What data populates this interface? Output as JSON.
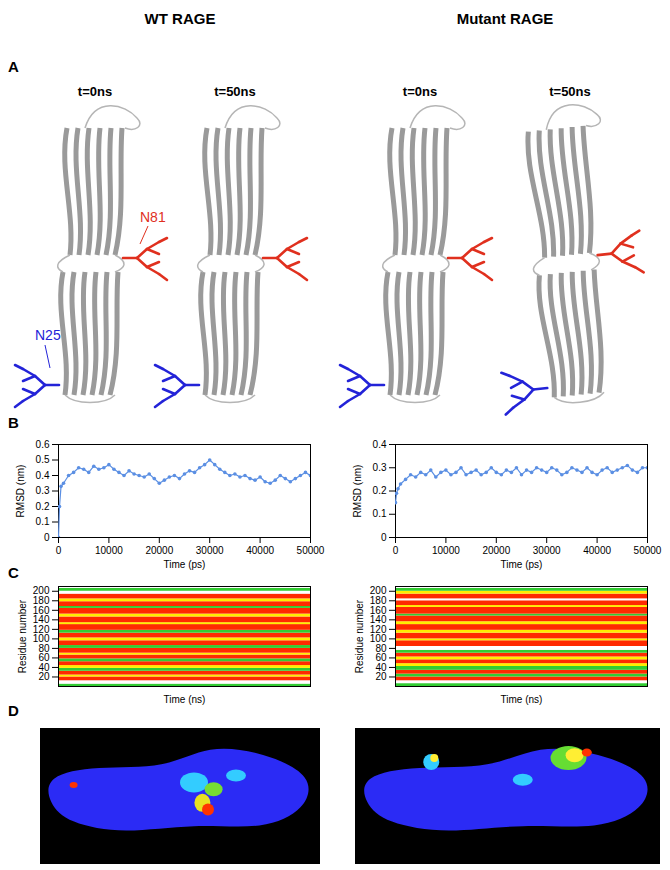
{
  "column_titles": [
    "WT RAGE",
    "Mutant RAGE"
  ],
  "panel_labels": [
    "A",
    "B",
    "C",
    "D"
  ],
  "structures": {
    "time_labels": [
      "t=0ns",
      "t=50ns"
    ],
    "glycans": [
      {
        "label": "N25",
        "color": "#2323d8"
      },
      {
        "label": "N81",
        "color": "#e0301e"
      }
    ]
  },
  "chart_data": [
    {
      "type": "line",
      "marker": "circle",
      "color": "#5b8fe3",
      "x_label": "Time (ps)",
      "y_label": "RMSD (nm)",
      "xlim": [
        0,
        50000
      ],
      "xticks": [
        0,
        10000,
        20000,
        30000,
        40000,
        50000
      ],
      "ylim": [
        0,
        0.6
      ],
      "yticks": [
        0,
        0.1,
        0.2,
        0.3,
        0.4,
        0.5,
        0.6
      ],
      "x": [
        0,
        200,
        500,
        1000,
        2000,
        3000,
        4000,
        5000,
        6000,
        7000,
        8000,
        9000,
        10000,
        11000,
        12000,
        13000,
        14000,
        15000,
        16000,
        17000,
        18000,
        19000,
        20000,
        21000,
        22000,
        23000,
        24000,
        25000,
        26000,
        27000,
        28000,
        29000,
        30000,
        31000,
        32000,
        33000,
        34000,
        35000,
        36000,
        37000,
        38000,
        39000,
        40000,
        41000,
        42000,
        43000,
        44000,
        45000,
        46000,
        47000,
        48000,
        49000,
        50000
      ],
      "values": [
        0,
        0.2,
        0.33,
        0.35,
        0.4,
        0.42,
        0.45,
        0.44,
        0.42,
        0.46,
        0.44,
        0.45,
        0.47,
        0.44,
        0.42,
        0.4,
        0.43,
        0.41,
        0.4,
        0.39,
        0.41,
        0.38,
        0.35,
        0.37,
        0.39,
        0.4,
        0.38,
        0.41,
        0.43,
        0.42,
        0.45,
        0.47,
        0.5,
        0.47,
        0.44,
        0.42,
        0.4,
        0.41,
        0.39,
        0.4,
        0.38,
        0.37,
        0.39,
        0.36,
        0.35,
        0.37,
        0.4,
        0.38,
        0.36,
        0.38,
        0.4,
        0.42,
        0.4
      ]
    },
    {
      "type": "line",
      "marker": "circle",
      "color": "#5b8fe3",
      "x_label": "Time (ps)",
      "y_label": "RMSD (nm)",
      "xlim": [
        0,
        50000
      ],
      "xticks": [
        0,
        10000,
        20000,
        30000,
        40000,
        50000
      ],
      "ylim": [
        0,
        0.4
      ],
      "yticks": [
        0,
        0.1,
        0.2,
        0.3,
        0.4
      ],
      "x": [
        0,
        200,
        500,
        1000,
        2000,
        3000,
        4000,
        5000,
        6000,
        7000,
        8000,
        9000,
        10000,
        11000,
        12000,
        13000,
        14000,
        15000,
        16000,
        17000,
        18000,
        19000,
        20000,
        21000,
        22000,
        23000,
        24000,
        25000,
        26000,
        27000,
        28000,
        29000,
        30000,
        31000,
        32000,
        33000,
        34000,
        35000,
        36000,
        37000,
        38000,
        39000,
        40000,
        41000,
        42000,
        43000,
        44000,
        45000,
        46000,
        47000,
        48000,
        49000,
        50000
      ],
      "values": [
        0.15,
        0.19,
        0.21,
        0.23,
        0.25,
        0.27,
        0.26,
        0.28,
        0.27,
        0.29,
        0.26,
        0.28,
        0.29,
        0.27,
        0.28,
        0.3,
        0.27,
        0.28,
        0.29,
        0.27,
        0.28,
        0.3,
        0.28,
        0.27,
        0.29,
        0.28,
        0.3,
        0.27,
        0.29,
        0.28,
        0.3,
        0.29,
        0.28,
        0.3,
        0.29,
        0.27,
        0.28,
        0.3,
        0.29,
        0.28,
        0.3,
        0.28,
        0.27,
        0.29,
        0.3,
        0.28,
        0.29,
        0.3,
        0.31,
        0.29,
        0.28,
        0.3,
        0.3
      ]
    },
    {
      "type": "heatmap",
      "tick_labels": "y",
      "x_label": "Time (ns)",
      "y_label": "Residue number",
      "xlim": [
        0,
        50
      ],
      "ylim": [
        0,
        210
      ],
      "yticks": [
        20,
        40,
        60,
        80,
        100,
        120,
        140,
        160,
        180,
        200
      ],
      "bands": [
        {
          "from": 0,
          "to": 5,
          "color": "#33cc33"
        },
        {
          "from": 5,
          "to": 12,
          "color": "#ffffff"
        },
        {
          "from": 12,
          "to": 20,
          "color": "#ff2a00"
        },
        {
          "from": 20,
          "to": 24,
          "color": "#ffee00"
        },
        {
          "from": 24,
          "to": 32,
          "color": "#ff2a00"
        },
        {
          "from": 32,
          "to": 38,
          "color": "#33cc33"
        },
        {
          "from": 38,
          "to": 44,
          "color": "#ffee00"
        },
        {
          "from": 44,
          "to": 52,
          "color": "#ff2a00"
        },
        {
          "from": 52,
          "to": 58,
          "color": "#33cc33"
        },
        {
          "from": 58,
          "to": 66,
          "color": "#ff2a00"
        },
        {
          "from": 66,
          "to": 70,
          "color": "#ffee00"
        },
        {
          "from": 70,
          "to": 80,
          "color": "#ff2a00"
        },
        {
          "from": 80,
          "to": 86,
          "color": "#33cc33"
        },
        {
          "from": 86,
          "to": 96,
          "color": "#ff2a00"
        },
        {
          "from": 96,
          "to": 102,
          "color": "#ffee00"
        },
        {
          "from": 102,
          "to": 112,
          "color": "#ff2a00"
        },
        {
          "from": 112,
          "to": 118,
          "color": "#33cc33"
        },
        {
          "from": 118,
          "to": 130,
          "color": "#ff2a00"
        },
        {
          "from": 130,
          "to": 134,
          "color": "#ffee00"
        },
        {
          "from": 134,
          "to": 146,
          "color": "#ff2a00"
        },
        {
          "from": 146,
          "to": 152,
          "color": "#ffee00"
        },
        {
          "from": 152,
          "to": 164,
          "color": "#ff2a00"
        },
        {
          "from": 164,
          "to": 168,
          "color": "#33cc33"
        },
        {
          "from": 168,
          "to": 178,
          "color": "#ff2a00"
        },
        {
          "from": 178,
          "to": 184,
          "color": "#ffee00"
        },
        {
          "from": 184,
          "to": 194,
          "color": "#ff2a00"
        },
        {
          "from": 194,
          "to": 200,
          "color": "#ffffff"
        },
        {
          "from": 200,
          "to": 206,
          "color": "#33cc33"
        },
        {
          "from": 206,
          "to": 210,
          "color": "#ffffff"
        }
      ]
    },
    {
      "type": "heatmap",
      "tick_labels": "y",
      "x_label": "Time (ns)",
      "y_label": "Residue number",
      "xlim": [
        0,
        50
      ],
      "ylim": [
        0,
        210
      ],
      "yticks": [
        20,
        40,
        60,
        80,
        100,
        120,
        140,
        160,
        180,
        200
      ],
      "bands": [
        {
          "from": 0,
          "to": 6,
          "color": "#33cc33"
        },
        {
          "from": 6,
          "to": 12,
          "color": "#ffffff"
        },
        {
          "from": 12,
          "to": 20,
          "color": "#ff2a00"
        },
        {
          "from": 20,
          "to": 26,
          "color": "#33cc33"
        },
        {
          "from": 26,
          "to": 34,
          "color": "#ff2a00"
        },
        {
          "from": 34,
          "to": 42,
          "color": "#33cc33"
        },
        {
          "from": 42,
          "to": 48,
          "color": "#ffee00"
        },
        {
          "from": 48,
          "to": 56,
          "color": "#ff2a00"
        },
        {
          "from": 56,
          "to": 62,
          "color": "#ffee00"
        },
        {
          "from": 62,
          "to": 70,
          "color": "#ff2a00"
        },
        {
          "from": 70,
          "to": 76,
          "color": "#33cc33"
        },
        {
          "from": 76,
          "to": 84,
          "color": "#ffffff"
        },
        {
          "from": 84,
          "to": 96,
          "color": "#ff2a00"
        },
        {
          "from": 96,
          "to": 100,
          "color": "#ffee00"
        },
        {
          "from": 100,
          "to": 112,
          "color": "#ff2a00"
        },
        {
          "from": 112,
          "to": 118,
          "color": "#ffee00"
        },
        {
          "from": 118,
          "to": 130,
          "color": "#ff2a00"
        },
        {
          "from": 130,
          "to": 136,
          "color": "#ffee00"
        },
        {
          "from": 136,
          "to": 148,
          "color": "#ff2a00"
        },
        {
          "from": 148,
          "to": 152,
          "color": "#33cc33"
        },
        {
          "from": 152,
          "to": 166,
          "color": "#ff2a00"
        },
        {
          "from": 166,
          "to": 170,
          "color": "#ffee00"
        },
        {
          "from": 170,
          "to": 180,
          "color": "#ff2a00"
        },
        {
          "from": 180,
          "to": 184,
          "color": "#ffffff"
        },
        {
          "from": 184,
          "to": 194,
          "color": "#ff2a00"
        },
        {
          "from": 194,
          "to": 200,
          "color": "#ffee00"
        },
        {
          "from": 200,
          "to": 206,
          "color": "#33cc33"
        },
        {
          "from": 206,
          "to": 210,
          "color": "#ffffff"
        }
      ]
    }
  ]
}
